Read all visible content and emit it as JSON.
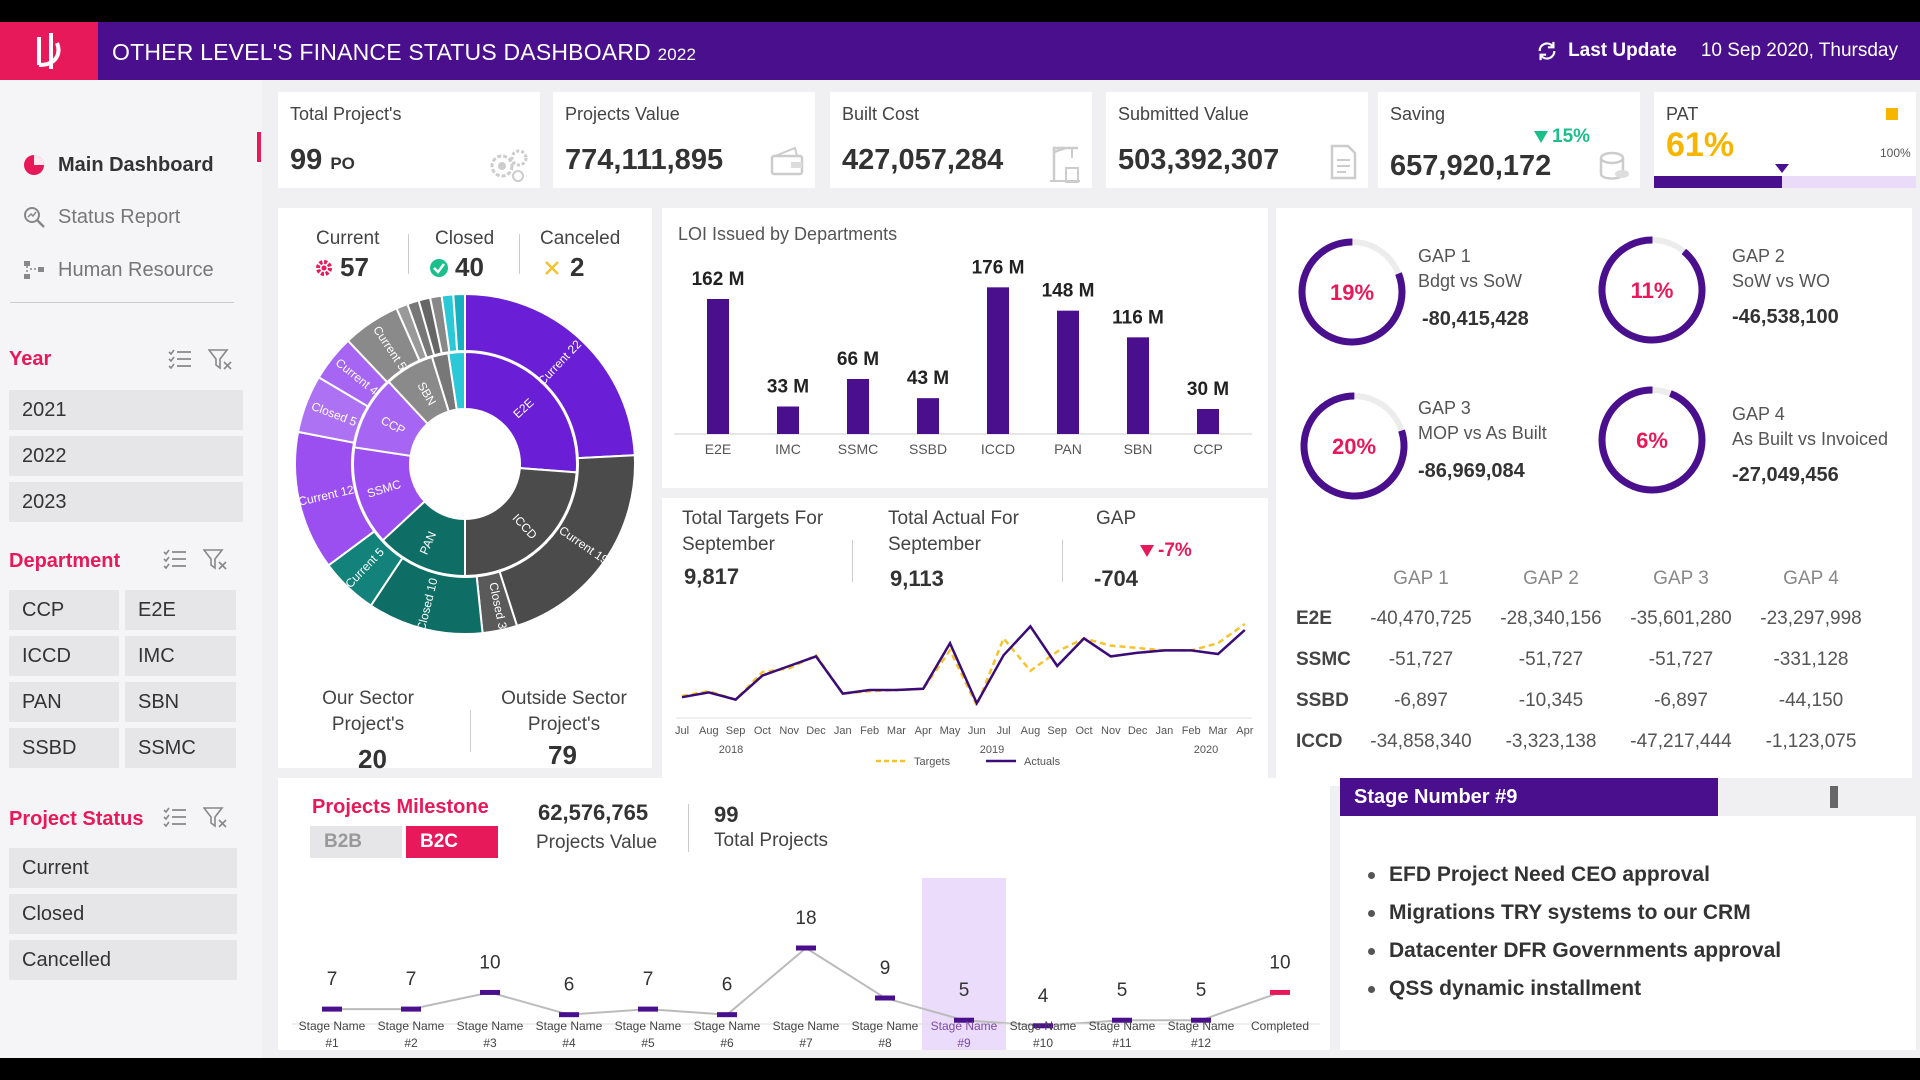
{
  "header": {
    "title": "OTHER LEVEL'S FINANCE STATUS DASHBOARD",
    "year": "2022",
    "last_update_label": "Last Update",
    "last_update_date": "10 Sep 2020, Thursday"
  },
  "nav": {
    "items": [
      {
        "label": "Main Dashboard"
      },
      {
        "label": "Status Report"
      },
      {
        "label": "Human Resource"
      }
    ]
  },
  "filters": {
    "year": {
      "title": "Year",
      "options": [
        "2021",
        "2022",
        "2023"
      ]
    },
    "department": {
      "title": "Department",
      "options": [
        "CCP",
        "E2E",
        "ICCD",
        "IMC",
        "PAN",
        "SBN",
        "SSBD",
        "SSMC"
      ]
    },
    "status": {
      "title": "Project Status",
      "options": [
        "Current",
        "Closed",
        "Cancelled"
      ]
    }
  },
  "kpis": [
    {
      "label": "Total Project's",
      "value": "99",
      "unit": "PO"
    },
    {
      "label": "Projects Value",
      "value": "774,111,895"
    },
    {
      "label": "Built Cost",
      "value": "427,057,284"
    },
    {
      "label": "Submitted Value",
      "value": "503,392,307"
    },
    {
      "label": "Saving",
      "value": "657,920,172",
      "change": "15%"
    },
    {
      "label": "PAT",
      "value": "61%",
      "pct": 61,
      "max_label": "100%"
    }
  ],
  "projects": {
    "current_label": "Current",
    "current": "57",
    "closed_label": "Closed",
    "closed": "40",
    "canceled_label": "Canceled",
    "canceled": "2",
    "our_sector_label": "Our Sector Project's",
    "our_sector": "20",
    "outside_sector_label": "Outside Sector Project's",
    "outside_sector": "79"
  },
  "sunburst": {
    "inner": [
      {
        "label": "E2E",
        "value": 22,
        "color": "#6a1fd6"
      },
      {
        "label": "ICCD",
        "value": 20,
        "color": "#4b4b4b"
      },
      {
        "label": "PAN",
        "value": 11,
        "color": "#0e6e66"
      },
      {
        "label": "SSMC",
        "value": 12,
        "color": "#9b4ff0"
      },
      {
        "label": "CCP",
        "value": 9,
        "color": "#a666f3"
      },
      {
        "label": "SBN",
        "value": 6,
        "color": "#8a8a8a"
      },
      {
        "label": "",
        "value": 2,
        "color": "#777777"
      },
      {
        "label": "",
        "value": 2,
        "color": "#2bc8d8"
      }
    ],
    "outer": [
      {
        "label": "Current 22",
        "value": 22,
        "color": "#6a1fd6"
      },
      {
        "label": "Current 19",
        "value": 19,
        "color": "#4b4b4b"
      },
      {
        "label": "Closed 3",
        "value": 3,
        "color": "#5a5a5a"
      },
      {
        "label": "Closed 10",
        "value": 10,
        "color": "#0e6e66"
      },
      {
        "label": "Current 5",
        "value": 5,
        "color": "#12827a"
      },
      {
        "label": "Current 12",
        "value": 12,
        "color": "#9b4ff0"
      },
      {
        "label": "Closed 5",
        "value": 5,
        "color": "#ad72f4"
      },
      {
        "label": "Current 4",
        "value": 4,
        "color": "#a666f3"
      },
      {
        "label": "Current 5",
        "value": 5,
        "color": "#8a8a8a"
      },
      {
        "label": "",
        "value": 1,
        "color": "#999999"
      },
      {
        "label": "",
        "value": 1,
        "color": "#777777"
      },
      {
        "label": "",
        "value": 1,
        "color": "#666666"
      },
      {
        "label": "",
        "value": 1,
        "color": "#888888"
      },
      {
        "label": "",
        "value": 1,
        "color": "#2bc8d8"
      },
      {
        "label": "",
        "value": 1,
        "color": "#16b0c0"
      }
    ]
  },
  "loi_chart": {
    "title": "LOI Issued by Departments",
    "categories": [
      "E2E",
      "IMC",
      "SSMC",
      "SSBD",
      "ICCD",
      "PAN",
      "SBN",
      "CCP"
    ],
    "values": [
      162,
      33,
      66,
      43,
      176,
      148,
      116,
      30
    ],
    "labels": [
      "162 M",
      "33 M",
      "66 M",
      "43 M",
      "176 M",
      "148 M",
      "116 M",
      "30 M"
    ],
    "color": "#4a0f8c"
  },
  "targets": {
    "targets_label": "Total Targets For September",
    "targets": "9,817",
    "actual_label": "Total Actual For September",
    "actual": "9,113",
    "gap_label": "GAP",
    "gap": "-704",
    "gap_pct": "-7%"
  },
  "trend_chart": {
    "months": [
      "Jul",
      "Aug",
      "Sep",
      "Oct",
      "Nov",
      "Dec",
      "Jan",
      "Feb",
      "Mar",
      "Apr",
      "May",
      "Jun",
      "Jul",
      "Aug",
      "Sep",
      "Oct",
      "Nov",
      "Dec",
      "Jan",
      "Feb",
      "Mar",
      "Apr"
    ],
    "years": [
      "2018",
      "2019",
      "2020"
    ],
    "targets": [
      10,
      14,
      7,
      30,
      33,
      44,
      12,
      14,
      15,
      16,
      48,
      2,
      58,
      31,
      47,
      58,
      52,
      50,
      48,
      48,
      54,
      70
    ],
    "actuals": [
      9,
      13,
      7,
      27,
      35,
      43,
      12,
      15,
      15,
      16,
      54,
      4,
      44,
      68,
      35,
      58,
      43,
      46,
      48,
      48,
      45,
      65
    ],
    "ylim": [
      0,
      100
    ],
    "legend": {
      "targets": "Targets",
      "actuals": "Actuals"
    },
    "target_color": "#f4c430",
    "actual_color": "#3b0b77"
  },
  "gaps": [
    {
      "title": "GAP 1",
      "subtitle": "Bdgt vs SoW",
      "pct": 19,
      "pct_label": "19%",
      "value": "-80,415,428"
    },
    {
      "title": "GAP 2",
      "subtitle": "SoW vs WO",
      "pct": 11,
      "pct_label": "11%",
      "value": "-46,538,100"
    },
    {
      "title": "GAP 3",
      "subtitle": "MOP vs As Built",
      "pct": 20,
      "pct_label": "20%",
      "value": "-86,969,084"
    },
    {
      "title": "GAP 4",
      "subtitle": "As Built vs Invoiced",
      "pct": 6,
      "pct_label": "6%",
      "value": "-27,049,456"
    }
  ],
  "gap_table": {
    "headers": [
      "GAP 1",
      "GAP 2",
      "GAP 3",
      "GAP 4"
    ],
    "rows": [
      {
        "name": "E2E",
        "values": [
          "-40,470,725",
          "-28,340,156",
          "-35,601,280",
          "-23,297,998"
        ]
      },
      {
        "name": "SSMC",
        "values": [
          "-51,727",
          "-51,727",
          "-51,727",
          "-331,128"
        ]
      },
      {
        "name": "SSBD",
        "values": [
          "-6,897",
          "-10,345",
          "-6,897",
          "-44,150"
        ]
      },
      {
        "name": "ICCD",
        "values": [
          "-34,858,340",
          "-3,323,138",
          "-47,217,444",
          "-1,123,075"
        ]
      }
    ]
  },
  "milestone": {
    "title": "Projects Milestone",
    "tabs": [
      "B2B",
      "B2C"
    ],
    "value": "62,576,765",
    "value_label": "Projects Value",
    "total": "99",
    "total_label": "Total Projects",
    "stages": [
      "Stage Name #1",
      "Stage Name #2",
      "Stage Name #3",
      "Stage Name #4",
      "Stage Name #5",
      "Stage Name #6",
      "Stage Name #7",
      "Stage Name #8",
      "Stage Name #9",
      "Stage Name #10",
      "Stage Name #11",
      "Stage Name #12",
      "Completed"
    ],
    "values": [
      7,
      7,
      10,
      6,
      7,
      6,
      18,
      9,
      5,
      4,
      5,
      5,
      10
    ],
    "highlight_index": 8
  },
  "stage_detail": {
    "title": "Stage Number #9",
    "items": [
      "EFD Project Need CEO approval",
      "Migrations TRY systems to our CRM",
      "Datacenter DFR Governments approval",
      "QSS dynamic installment"
    ]
  }
}
